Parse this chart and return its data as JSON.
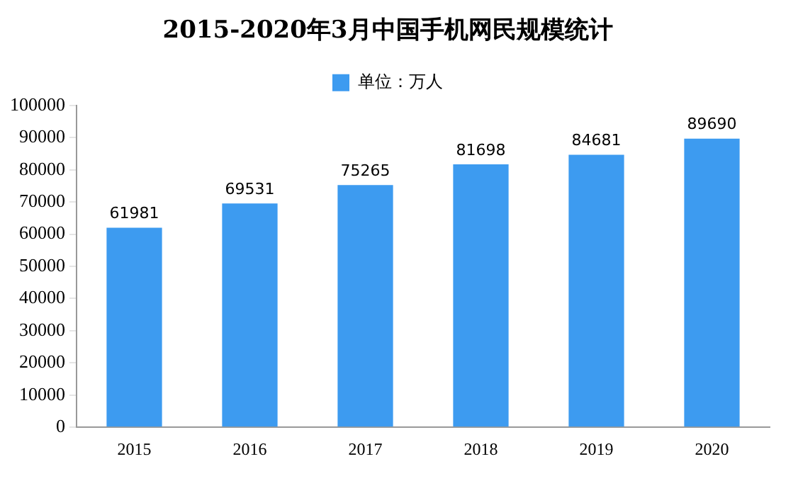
{
  "chart_data": {
    "type": "bar",
    "title": "2015-2020年3月中国手机网民规模统计",
    "categories": [
      "2015",
      "2016",
      "2017",
      "2018",
      "2019",
      "2020"
    ],
    "series": [
      {
        "name": "单位：万人",
        "color": "#3d9bf0",
        "values": [
          61981,
          69531,
          75265,
          81698,
          84681,
          89690
        ]
      }
    ],
    "ylim": [
      0,
      100000
    ],
    "yticks": [
      0,
      10000,
      20000,
      30000,
      40000,
      50000,
      60000,
      70000,
      80000,
      90000,
      100000
    ],
    "grid": false,
    "legend": "top",
    "data_labels": true
  }
}
